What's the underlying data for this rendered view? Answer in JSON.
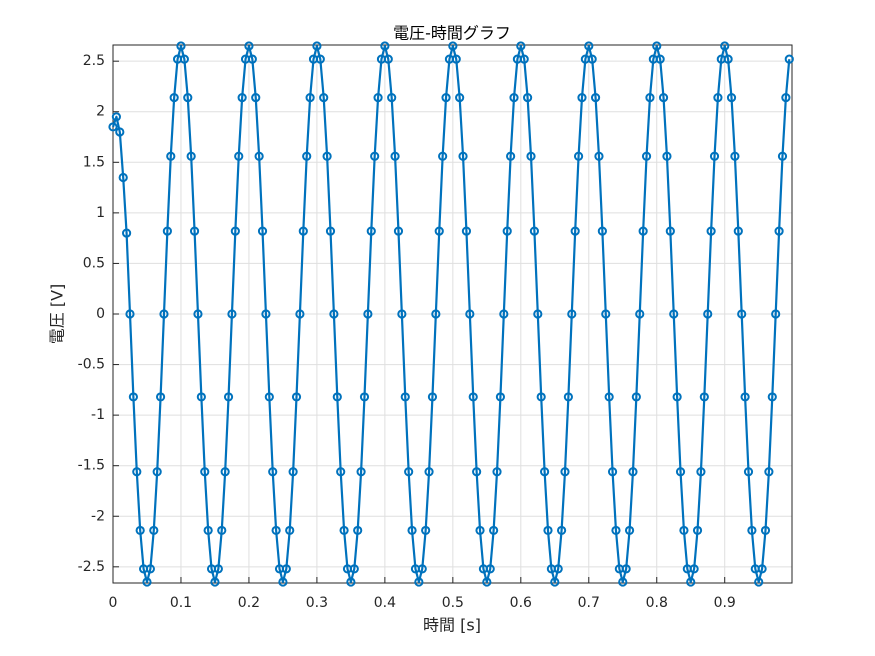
{
  "chart_data": {
    "type": "line",
    "title": "電圧-時間グラフ",
    "x_label": "時間 [s]",
    "y_label": "電圧 [V]",
    "xlim": [
      0,
      0.999
    ],
    "ylim": [
      -2.66,
      2.66
    ],
    "xticks": [
      0,
      0.1,
      0.2,
      0.3,
      0.4,
      0.5,
      0.6,
      0.7,
      0.8,
      0.9
    ],
    "yticks": [
      -2.5,
      -2,
      -1.5,
      -1,
      -0.5,
      0,
      0.5,
      1,
      1.5,
      2,
      2.5
    ],
    "grid": true,
    "markers": true,
    "x": [
      0,
      0.005,
      0.01,
      0.015,
      0.02,
      0.025,
      0.03,
      0.035,
      0.04,
      0.045,
      0.05,
      0.055,
      0.06,
      0.065,
      0.07,
      0.075,
      0.08,
      0.085,
      0.09,
      0.095,
      0.1,
      0.105,
      0.11,
      0.115,
      0.12,
      0.125,
      0.13,
      0.135,
      0.14,
      0.145,
      0.15,
      0.155,
      0.16,
      0.165,
      0.17,
      0.175,
      0.18,
      0.185,
      0.19,
      0.195,
      0.2,
      0.205,
      0.21,
      0.215,
      0.22,
      0.225,
      0.23,
      0.235,
      0.24,
      0.245,
      0.25,
      0.255,
      0.26,
      0.265,
      0.27,
      0.275,
      0.28,
      0.285,
      0.29,
      0.295,
      0.3,
      0.305,
      0.31,
      0.315,
      0.32,
      0.325,
      0.33,
      0.335,
      0.34,
      0.345,
      0.35,
      0.355,
      0.36,
      0.365,
      0.37,
      0.375,
      0.38,
      0.385,
      0.39,
      0.395,
      0.4,
      0.405,
      0.41,
      0.415,
      0.42,
      0.425,
      0.43,
      0.435,
      0.44,
      0.445,
      0.45,
      0.455,
      0.46,
      0.465,
      0.47,
      0.475,
      0.48,
      0.485,
      0.49,
      0.495,
      0.5,
      0.505,
      0.51,
      0.515,
      0.52,
      0.525,
      0.53,
      0.535,
      0.54,
      0.545,
      0.55,
      0.555,
      0.56,
      0.565,
      0.57,
      0.575,
      0.58,
      0.585,
      0.59,
      0.595,
      0.6,
      0.605,
      0.61,
      0.615,
      0.62,
      0.625,
      0.63,
      0.635,
      0.64,
      0.645,
      0.65,
      0.655,
      0.66,
      0.665,
      0.67,
      0.675,
      0.68,
      0.685,
      0.69,
      0.695,
      0.7,
      0.705,
      0.71,
      0.715,
      0.72,
      0.725,
      0.73,
      0.735,
      0.74,
      0.745,
      0.75,
      0.755,
      0.76,
      0.765,
      0.77,
      0.775,
      0.78,
      0.785,
      0.79,
      0.795,
      0.8,
      0.805,
      0.81,
      0.815,
      0.82,
      0.825,
      0.83,
      0.835,
      0.84,
      0.845,
      0.85,
      0.855,
      0.86,
      0.865,
      0.87,
      0.875,
      0.88,
      0.885,
      0.89,
      0.895,
      0.9,
      0.905,
      0.91,
      0.915,
      0.92,
      0.925,
      0.93,
      0.935,
      0.94,
      0.945,
      0.95,
      0.955,
      0.96,
      0.965,
      0.97,
      0.975,
      0.98,
      0.985,
      0.99,
      0.995
    ],
    "series": [
      {
        "color": "#0072bd",
        "values": [
          1.85,
          1.95,
          1.8,
          1.35,
          0.8,
          0,
          -0.82,
          -1.56,
          -2.14,
          -2.52,
          -2.65,
          -2.52,
          -2.14,
          -1.56,
          -0.82,
          0,
          0.82,
          1.56,
          2.14,
          2.52,
          2.65,
          2.52,
          2.14,
          1.56,
          0.82,
          0,
          -0.82,
          -1.56,
          -2.14,
          -2.52,
          -2.65,
          -2.52,
          -2.14,
          -1.56,
          -0.82,
          0,
          0.82,
          1.56,
          2.14,
          2.52,
          2.65,
          2.52,
          2.14,
          1.56,
          0.82,
          0,
          -0.82,
          -1.56,
          -2.14,
          -2.52,
          -2.65,
          -2.52,
          -2.14,
          -1.56,
          -0.82,
          0,
          0.82,
          1.56,
          2.14,
          2.52,
          2.65,
          2.52,
          2.14,
          1.56,
          0.82,
          0,
          -0.82,
          -1.56,
          -2.14,
          -2.52,
          -2.65,
          -2.52,
          -2.14,
          -1.56,
          -0.82,
          0,
          0.82,
          1.56,
          2.14,
          2.52,
          2.65,
          2.52,
          2.14,
          1.56,
          0.82,
          0,
          -0.82,
          -1.56,
          -2.14,
          -2.52,
          -2.65,
          -2.52,
          -2.14,
          -1.56,
          -0.82,
          0,
          0.82,
          1.56,
          2.14,
          2.52,
          2.65,
          2.52,
          2.14,
          1.56,
          0.82,
          0,
          -0.82,
          -1.56,
          -2.14,
          -2.52,
          -2.65,
          -2.52,
          -2.14,
          -1.56,
          -0.82,
          0,
          0.82,
          1.56,
          2.14,
          2.52,
          2.65,
          2.52,
          2.14,
          1.56,
          0.82,
          0,
          -0.82,
          -1.56,
          -2.14,
          -2.52,
          -2.65,
          -2.52,
          -2.14,
          -1.56,
          -0.82,
          0,
          0.82,
          1.56,
          2.14,
          2.52,
          2.65,
          2.52,
          2.14,
          1.56,
          0.82,
          0,
          -0.82,
          -1.56,
          -2.14,
          -2.52,
          -2.65,
          -2.52,
          -2.14,
          -1.56,
          -0.82,
          0,
          0.82,
          1.56,
          2.14,
          2.52,
          2.65,
          2.52,
          2.14,
          1.56,
          0.82,
          0,
          -0.82,
          -1.56,
          -2.14,
          -2.52,
          -2.65,
          -2.52,
          -2.14,
          -1.56,
          -0.82,
          0,
          0.82,
          1.56,
          2.14,
          2.52,
          2.65,
          2.52,
          2.14,
          1.56,
          0.82,
          0,
          -0.82,
          -1.56,
          -2.14,
          -2.52,
          -2.65,
          -2.52,
          -2.14,
          -1.56,
          -0.82,
          0,
          0.82,
          1.56,
          2.14,
          2.52
        ]
      }
    ]
  }
}
